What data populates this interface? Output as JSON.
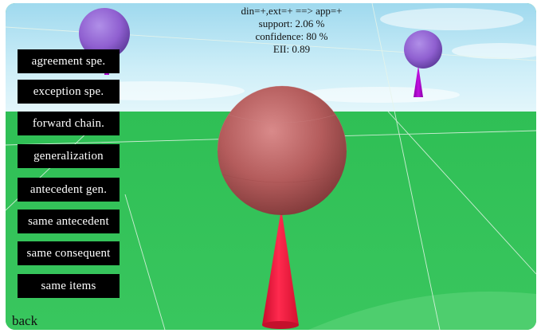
{
  "rule": {
    "line1": "din=+,ext=+ ==> app=+",
    "support": "support: 2.06 %",
    "confidence": "confidence: 80 %",
    "eii": "EII: 0.89"
  },
  "menu": [
    "agreement spe.",
    "exception spe.",
    "forward chain.",
    "generalization",
    "antecedent gen.",
    "same antecedent",
    "same consequent",
    "same items"
  ],
  "back_label": "back",
  "colors": {
    "sky": "#bfe9f6",
    "ground": "#3cc85c",
    "main_sphere": "#b45c5c",
    "main_cone": "#ff1c44",
    "side_sphere": "#8f5fd0",
    "side_cone": "#b000c8",
    "button_bg": "#000000"
  }
}
